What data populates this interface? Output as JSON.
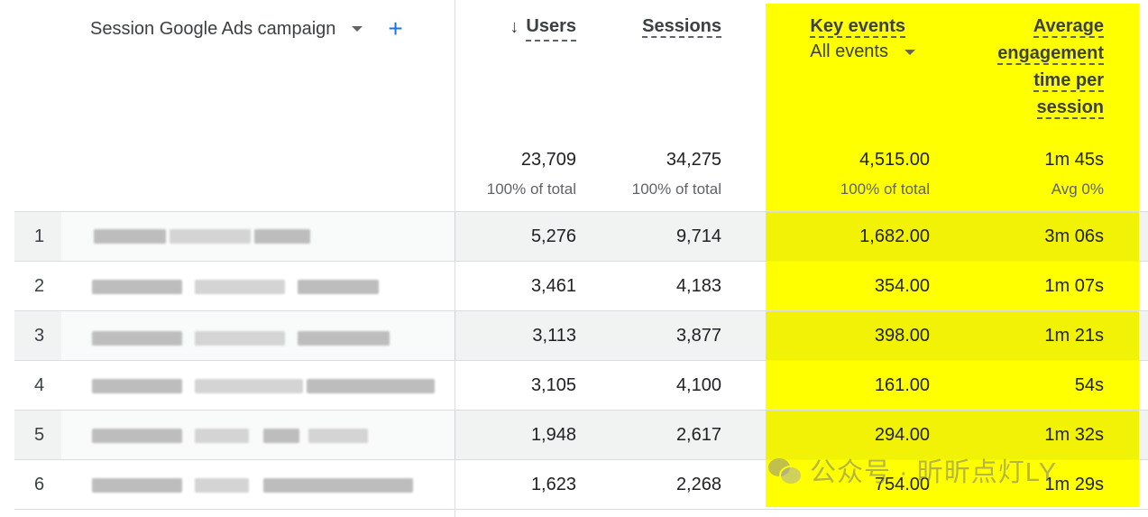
{
  "header": {
    "dimension_label": "Session Google Ads campaign",
    "add_symbol": "+",
    "users": {
      "arrow": "↓",
      "label": "Users"
    },
    "sessions": {
      "label": "Sessions"
    },
    "key_events": {
      "label": "Key events",
      "filter": "All events"
    },
    "avg_engagement": {
      "line1": "Average",
      "line2": "engagement",
      "line3": "time per",
      "line4": "session"
    }
  },
  "totals": {
    "users": "23,709",
    "users_pct": "100% of total",
    "sessions": "34,275",
    "sessions_pct": "100% of total",
    "key_events": "4,515.00",
    "key_events_pct": "100% of total",
    "avg_engagement": "1m 45s",
    "avg_engagement_pct": "Avg 0%"
  },
  "rows": [
    {
      "idx": "1",
      "users": "5,276",
      "sessions": "9,714",
      "key_events": "1,682.00",
      "avg": "3m 06s"
    },
    {
      "idx": "2",
      "users": "3,461",
      "sessions": "4,183",
      "key_events": "354.00",
      "avg": "1m 07s"
    },
    {
      "idx": "3",
      "users": "3,113",
      "sessions": "3,877",
      "key_events": "398.00",
      "avg": "1m 21s"
    },
    {
      "idx": "4",
      "users": "3,105",
      "sessions": "4,100",
      "key_events": "161.00",
      "avg": "54s"
    },
    {
      "idx": "5",
      "users": "1,948",
      "sessions": "2,617",
      "key_events": "294.00",
      "avg": "1m 32s"
    },
    {
      "idx": "6",
      "users": "1,623",
      "sessions": "2,268",
      "key_events": "754.00",
      "avg": "1m 29s"
    }
  ],
  "watermark": {
    "text": "公众号 · 昕昕点灯LY",
    "icon": "wechat-icon"
  },
  "colors": {
    "highlight": "#ffff00",
    "accent": "#1a73e8"
  }
}
